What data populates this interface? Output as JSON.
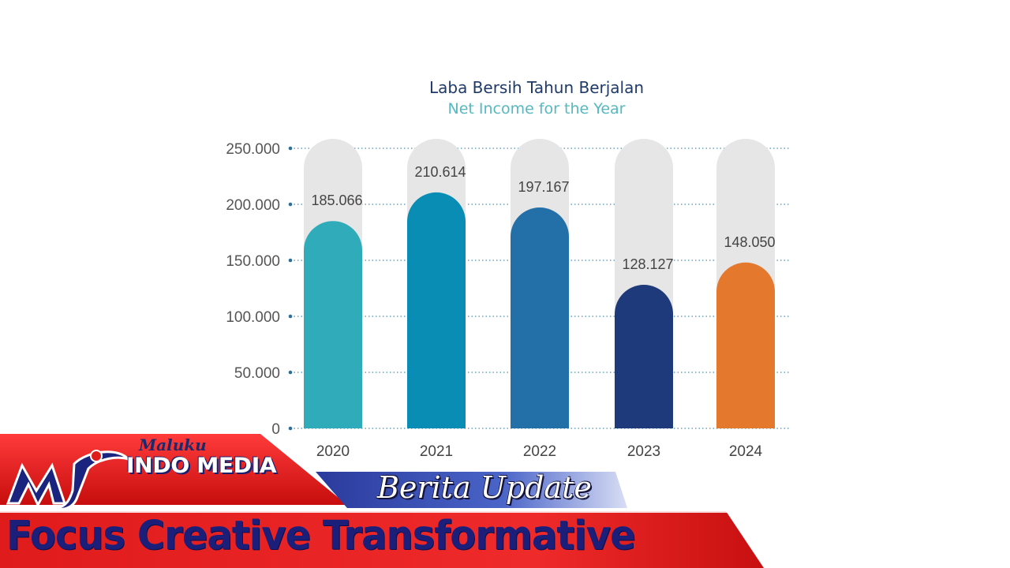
{
  "chart_data": {
    "type": "bar",
    "title": "Laba Bersih Tahun Berjalan",
    "subtitle": "Net Income for the Year",
    "categories": [
      "2020",
      "2021",
      "2022",
      "2023",
      "2024"
    ],
    "values": [
      185066,
      210614,
      197167,
      128127,
      148050
    ],
    "value_labels": [
      "185.066",
      "210.614",
      "197.167",
      "128.127",
      "148.050"
    ],
    "yticks": [
      0,
      50000,
      100000,
      150000,
      200000,
      250000
    ],
    "ytick_labels": [
      "0",
      "50.000",
      "100.000",
      "150.000",
      "200.000",
      "250.000"
    ],
    "ylim": [
      0,
      250000
    ],
    "bar_colors": [
      "#2fabb9",
      "#0a8db5",
      "#2370a8",
      "#1f3a7a",
      "#e4782c"
    ],
    "track_color": "#e6e6e6",
    "grid": true
  },
  "banner": {
    "brand_small": "Maluku",
    "brand_main": "INDO MEDIA",
    "update": "Berita Update",
    "tagline": "Focus Creative Transformative"
  }
}
